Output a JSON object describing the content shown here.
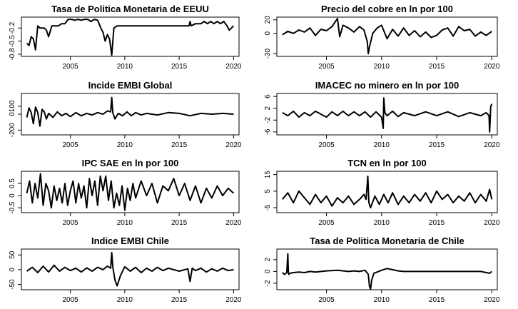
{
  "chart_data": [
    {
      "type": "line",
      "title": "Tasa de Politica Monetaria de EEUU",
      "xlim": [
        2000.5,
        2020.5
      ],
      "ylim": [
        -0.85,
        0.05
      ],
      "xticks": [
        2005,
        2010,
        2015,
        2020
      ],
      "yticks": [
        -0.8,
        -0.5,
        -0.2
      ],
      "x": [
        2001.0,
        2001.2,
        2001.4,
        2001.6,
        2001.8,
        2002.0,
        2002.2,
        2002.4,
        2002.6,
        2002.8,
        2003.0,
        2003.3,
        2003.6,
        2003.9,
        2004.2,
        2004.5,
        2004.8,
        2005.1,
        2005.4,
        2005.7,
        2006.0,
        2006.3,
        2006.6,
        2006.9,
        2007.2,
        2007.5,
        2007.8,
        2008.0,
        2008.2,
        2008.4,
        2008.6,
        2008.8,
        2009.0,
        2009.3,
        2009.6,
        2010.0,
        2012.0,
        2014.0,
        2015.9,
        2016.0,
        2016.1,
        2016.5,
        2017.0,
        2017.3,
        2017.6,
        2017.9,
        2018.2,
        2018.5,
        2018.8,
        2019.1,
        2019.4,
        2019.6,
        2019.8,
        2020.0
      ],
      "y": [
        -0.55,
        -0.6,
        -0.4,
        -0.45,
        -0.7,
        -0.15,
        -0.2,
        -0.2,
        -0.2,
        -0.25,
        -0.4,
        -0.15,
        -0.15,
        -0.15,
        -0.1,
        -0.1,
        0.0,
        0.0,
        -0.02,
        0.0,
        -0.02,
        0.0,
        0.0,
        -0.05,
        0.0,
        -0.02,
        -0.2,
        -0.3,
        -0.5,
        -0.35,
        -0.45,
        -0.82,
        -0.2,
        -0.15,
        -0.15,
        -0.15,
        -0.15,
        -0.15,
        -0.15,
        -0.05,
        -0.15,
        -0.1,
        -0.1,
        -0.05,
        -0.1,
        -0.05,
        -0.1,
        -0.05,
        -0.1,
        -0.05,
        -0.15,
        -0.25,
        -0.2,
        -0.15
      ]
    },
    {
      "type": "line",
      "title": "Precio del cobre en ln por 100",
      "xlim": [
        2000.5,
        2020.5
      ],
      "ylim": [
        -34,
        24
      ],
      "xticks": [
        2005,
        2010,
        2015,
        2020
      ],
      "yticks": [
        -30,
        0,
        20
      ],
      "x": [
        2001.0,
        2001.5,
        2002.0,
        2002.5,
        2003.0,
        2003.5,
        2004.0,
        2004.5,
        2005.0,
        2005.5,
        2006.0,
        2006.2,
        2006.5,
        2007.0,
        2007.5,
        2008.0,
        2008.4,
        2008.7,
        2008.8,
        2008.9,
        2009.2,
        2009.6,
        2010.0,
        2010.5,
        2011.0,
        2011.5,
        2012.0,
        2012.5,
        2013.0,
        2013.5,
        2014.0,
        2014.5,
        2015.0,
        2015.5,
        2016.0,
        2016.5,
        2017.0,
        2017.5,
        2018.0,
        2018.5,
        2019.0,
        2019.5,
        2020.0
      ],
      "y": [
        -2,
        3,
        0,
        5,
        2,
        8,
        -3,
        6,
        4,
        10,
        22,
        -5,
        12,
        8,
        2,
        10,
        5,
        -12,
        -30,
        -20,
        0,
        8,
        12,
        -8,
        6,
        -4,
        8,
        -3,
        4,
        -5,
        2,
        -6,
        -3,
        5,
        8,
        -4,
        10,
        4,
        6,
        -4,
        2,
        -3,
        3
      ]
    },
    {
      "type": "line",
      "title": "Incide EMBI Global",
      "xlim": [
        2000.5,
        2020.5
      ],
      "ylim": [
        -260,
        260
      ],
      "xticks": [
        2005,
        2010,
        2015,
        2020
      ],
      "yticks": [
        -200,
        0,
        100
      ],
      "x": [
        2001.0,
        2001.2,
        2001.4,
        2001.6,
        2001.8,
        2002.0,
        2002.2,
        2002.4,
        2002.6,
        2002.8,
        2003.0,
        2003.4,
        2003.8,
        2004.2,
        2004.6,
        2005.0,
        2005.5,
        2006.0,
        2006.5,
        2007.0,
        2007.5,
        2008.0,
        2008.4,
        2008.7,
        2008.8,
        2008.9,
        2009.1,
        2009.4,
        2009.8,
        2010.2,
        2010.6,
        2011.0,
        2011.5,
        2012.0,
        2013.0,
        2014.0,
        2015.0,
        2016.0,
        2017.0,
        2018.0,
        2019.0,
        2020.0
      ],
      "y": [
        -40,
        80,
        20,
        -120,
        90,
        20,
        -150,
        60,
        30,
        -60,
        10,
        -40,
        30,
        -20,
        10,
        -30,
        20,
        -20,
        10,
        -10,
        20,
        0,
        40,
        30,
        210,
        20,
        -60,
        10,
        -20,
        30,
        -20,
        20,
        -10,
        10,
        -10,
        20,
        10,
        -20,
        10,
        0,
        10,
        0
      ]
    },
    {
      "type": "line",
      "title": "IMACEC no minero en ln por 100",
      "xlim": [
        2000.5,
        2020.5
      ],
      "ylim": [
        -7,
        7
      ],
      "xticks": [
        2005,
        2010,
        2015,
        2020
      ],
      "yticks": [
        -6,
        -2,
        2,
        6
      ],
      "x": [
        2001.0,
        2001.5,
        2002.0,
        2002.5,
        2003.0,
        2003.5,
        2004.0,
        2004.5,
        2005.0,
        2005.5,
        2006.0,
        2006.5,
        2007.0,
        2007.5,
        2008.0,
        2008.5,
        2009.0,
        2009.5,
        2010.0,
        2010.15,
        2010.2,
        2010.3,
        2010.5,
        2011.0,
        2011.5,
        2012.0,
        2013.0,
        2014.0,
        2015.0,
        2016.0,
        2017.0,
        2018.0,
        2019.0,
        2019.5,
        2019.75,
        2019.8,
        2019.85,
        2019.9,
        2020.0
      ],
      "y": [
        0.5,
        -0.5,
        1.0,
        -1.0,
        0.5,
        -0.5,
        1.0,
        0.0,
        -1.0,
        0.8,
        -0.5,
        1.0,
        -0.5,
        0.8,
        -0.5,
        0.8,
        -1.0,
        0.8,
        -1.0,
        -4.8,
        5.5,
        0.5,
        -0.5,
        1.0,
        -0.8,
        0.5,
        -0.5,
        0.8,
        -0.5,
        0.8,
        -0.8,
        0.5,
        -0.5,
        0.5,
        -0.5,
        -6.0,
        -2.0,
        2.5,
        3.5
      ]
    },
    {
      "type": "line",
      "title": "IPC SAE en ln por 100",
      "xlim": [
        2000.5,
        2020.5
      ],
      "ylim": [
        -0.7,
        1.0
      ],
      "xticks": [
        2005,
        2010,
        2015,
        2020
      ],
      "yticks": [
        -0.5,
        0.0,
        0.5
      ],
      "x": [
        2001.0,
        2001.25,
        2001.5,
        2001.75,
        2002.0,
        2002.25,
        2002.5,
        2002.75,
        2003.0,
        2003.25,
        2003.5,
        2003.75,
        2004.0,
        2004.25,
        2004.5,
        2004.75,
        2005.0,
        2005.25,
        2005.5,
        2005.75,
        2006.0,
        2006.25,
        2006.5,
        2006.75,
        2007.0,
        2007.25,
        2007.5,
        2007.75,
        2008.0,
        2008.25,
        2008.5,
        2008.75,
        2009.0,
        2009.25,
        2009.5,
        2009.75,
        2010.0,
        2010.25,
        2010.5,
        2010.75,
        2011.0,
        2011.5,
        2012.0,
        2012.5,
        2013.0,
        2013.5,
        2014.0,
        2014.5,
        2015.0,
        2015.5,
        2016.0,
        2016.5,
        2017.0,
        2017.5,
        2018.0,
        2018.5,
        2019.0,
        2019.5,
        2020.0
      ],
      "y": [
        0.1,
        0.6,
        -0.3,
        0.5,
        -0.1,
        0.9,
        -0.4,
        0.5,
        0.2,
        -0.5,
        0.4,
        -0.2,
        0.3,
        -0.3,
        0.5,
        -0.4,
        0.2,
        0.6,
        -0.3,
        0.5,
        -0.1,
        0.4,
        -0.5,
        0.7,
        0.0,
        0.6,
        -0.4,
        0.8,
        0.2,
        0.8,
        -0.2,
        0.6,
        -0.5,
        0.1,
        -0.4,
        0.4,
        -0.6,
        0.3,
        -0.2,
        0.5,
        -0.1,
        0.6,
        0.0,
        0.5,
        -0.3,
        0.4,
        0.2,
        0.7,
        0.0,
        0.5,
        -0.2,
        0.4,
        -0.3,
        0.3,
        -0.1,
        0.4,
        0.0,
        0.3,
        0.1
      ]
    },
    {
      "type": "line",
      "title": "TCN en ln por 100",
      "xlim": [
        2000.5,
        2020.5
      ],
      "ylim": [
        -8,
        17
      ],
      "xticks": [
        2005,
        2010,
        2015,
        2020
      ],
      "yticks": [
        -5,
        5,
        15
      ],
      "x": [
        2001.0,
        2001.5,
        2002.0,
        2002.5,
        2003.0,
        2003.5,
        2004.0,
        2004.5,
        2005.0,
        2005.5,
        2006.0,
        2006.5,
        2007.0,
        2007.5,
        2008.0,
        2008.4,
        2008.6,
        2008.75,
        2008.85,
        2009.0,
        2009.4,
        2009.8,
        2010.2,
        2010.6,
        2011.0,
        2011.5,
        2012.0,
        2012.5,
        2013.0,
        2013.5,
        2014.0,
        2014.5,
        2015.0,
        2015.5,
        2016.0,
        2016.5,
        2017.0,
        2017.5,
        2018.0,
        2018.5,
        2019.0,
        2019.5,
        2019.8,
        2020.0
      ],
      "y": [
        0,
        4,
        -2,
        5,
        1,
        -3,
        3,
        -2,
        2,
        -4,
        1,
        -2,
        2,
        -3,
        0,
        3,
        0,
        14,
        -2,
        -5,
        2,
        -3,
        3,
        -2,
        4,
        -3,
        2,
        -2,
        3,
        -1,
        4,
        -2,
        5,
        0,
        3,
        -2,
        2,
        -1,
        4,
        -2,
        3,
        -1,
        6,
        0
      ]
    },
    {
      "type": "line",
      "title": "Indice EMBI Chile",
      "xlim": [
        2000.5,
        2020.5
      ],
      "ylim": [
        -68,
        70
      ],
      "xticks": [
        2005,
        2010,
        2015,
        2020
      ],
      "yticks": [
        -50,
        0,
        50
      ],
      "x": [
        2001.0,
        2001.5,
        2002.0,
        2002.5,
        2003.0,
        2003.5,
        2004.0,
        2004.5,
        2005.0,
        2005.5,
        2006.0,
        2006.5,
        2007.0,
        2007.5,
        2008.0,
        2008.4,
        2008.7,
        2008.8,
        2008.9,
        2009.1,
        2009.3,
        2009.6,
        2010.0,
        2010.5,
        2011.0,
        2011.5,
        2012.0,
        2012.5,
        2013.0,
        2013.5,
        2014.0,
        2015.0,
        2015.8,
        2016.0,
        2016.2,
        2016.5,
        2017.0,
        2017.5,
        2018.0,
        2018.5,
        2019.0,
        2019.5,
        2020.0
      ],
      "y": [
        -5,
        8,
        -10,
        12,
        -8,
        15,
        -5,
        8,
        -3,
        5,
        -8,
        6,
        -5,
        8,
        0,
        12,
        5,
        58,
        10,
        -35,
        -55,
        -20,
        10,
        -5,
        8,
        -10,
        5,
        -5,
        8,
        -3,
        5,
        -5,
        3,
        -40,
        5,
        -3,
        5,
        -8,
        3,
        -5,
        5,
        -3,
        0
      ]
    },
    {
      "type": "line",
      "title": "Tasa de Politica Monetaria de Chile",
      "xlim": [
        2000.5,
        2020.5
      ],
      "ylim": [
        -3.1,
        3.8
      ],
      "xticks": [
        2005,
        2010,
        2015,
        2020
      ],
      "yticks": [
        -2,
        0,
        2
      ],
      "x": [
        2001.0,
        2001.2,
        2001.4,
        2001.5,
        2001.55,
        2001.6,
        2001.7,
        2002.0,
        2002.5,
        2003.0,
        2003.5,
        2004.0,
        2005.0,
        2006.0,
        2007.0,
        2007.5,
        2008.0,
        2008.5,
        2008.8,
        2008.9,
        2009.0,
        2009.1,
        2009.3,
        2009.6,
        2010.0,
        2010.5,
        2011.0,
        2011.5,
        2012.0,
        2013.0,
        2014.0,
        2015.0,
        2016.0,
        2017.0,
        2018.0,
        2019.0,
        2019.5,
        2019.8,
        2020.0
      ],
      "y": [
        -0.2,
        -0.5,
        -0.2,
        3.0,
        -0.3,
        -0.5,
        -0.3,
        -0.2,
        -0.1,
        -0.2,
        0.0,
        -0.1,
        0.1,
        0.2,
        0.0,
        0.1,
        0.0,
        0.2,
        -0.5,
        -2.5,
        -3.0,
        -1.5,
        -0.3,
        -0.1,
        0.2,
        0.5,
        0.3,
        0.1,
        0.0,
        0.0,
        0.0,
        0.0,
        0.0,
        0.0,
        0.0,
        0.0,
        -0.2,
        -0.3,
        0.0
      ]
    }
  ]
}
